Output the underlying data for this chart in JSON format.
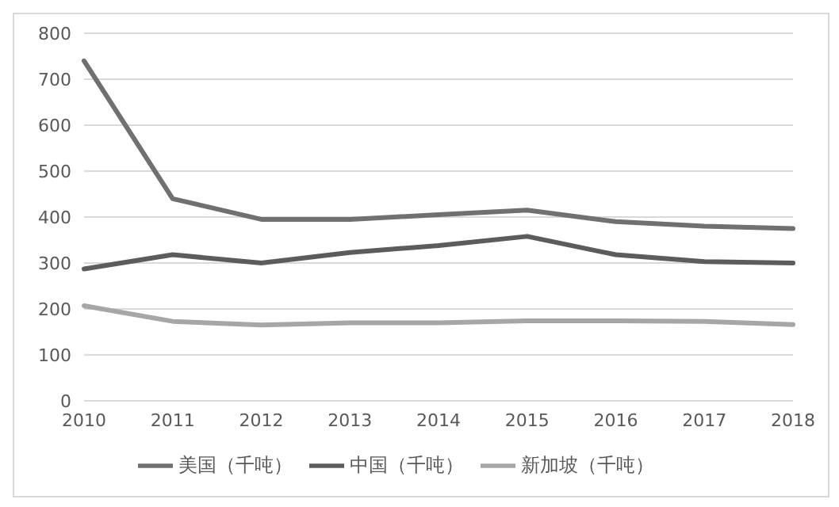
{
  "chart_data": {
    "type": "line",
    "categories": [
      "2010",
      "2011",
      "2012",
      "2013",
      "2014",
      "2015",
      "2016",
      "2017",
      "2018"
    ],
    "series": [
      {
        "name": "美国（千吨）",
        "color": "#707070",
        "values": [
          740,
          440,
          395,
          395,
          405,
          415,
          390,
          380,
          375
        ]
      },
      {
        "name": "中国（千吨）",
        "color": "#5c5c5c",
        "values": [
          287,
          318,
          300,
          323,
          338,
          358,
          318,
          303,
          300
        ]
      },
      {
        "name": "新加坡（千吨）",
        "color": "#a6a6a6",
        "values": [
          207,
          173,
          165,
          170,
          170,
          174,
          174,
          173,
          166
        ]
      }
    ],
    "ylim": [
      0,
      800
    ],
    "yticks": [
      0,
      100,
      200,
      300,
      400,
      500,
      600,
      700,
      800
    ],
    "grid": "y",
    "legend": "bottom",
    "marker": "none",
    "line_style": "solid"
  }
}
